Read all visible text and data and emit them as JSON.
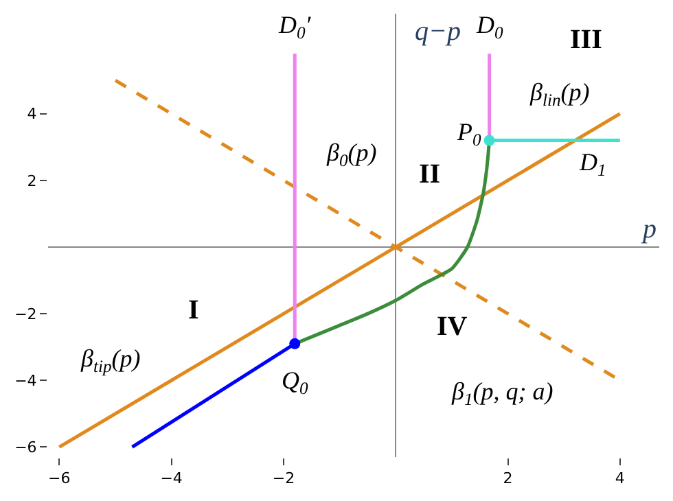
{
  "chart_data": {
    "type": "line",
    "xlabel": "p",
    "ylabel": "q−p",
    "xlim": [
      -6.2,
      4.7
    ],
    "ylim": [
      -6.3,
      7.0
    ],
    "xticks": [
      -6,
      -4,
      -2,
      2,
      4
    ],
    "yticks": [
      -6,
      -4,
      -2,
      2,
      4
    ],
    "marker": "none",
    "series": [
      {
        "color": "#e08a1e",
        "x": [
          -6,
          4
        ],
        "values": [
          -6,
          4
        ]
      },
      {
        "color": "#e08a1e",
        "line_style": "dashed",
        "x": [
          -5,
          4
        ],
        "values": [
          5,
          -4
        ]
      },
      {
        "color": "#ee82ee",
        "x": [
          -1.8,
          -1.8
        ],
        "values": [
          5.8,
          -2.9
        ]
      },
      {
        "color": "#ee82ee",
        "x": [
          1.67,
          1.67
        ],
        "values": [
          5.8,
          3.2
        ]
      },
      {
        "color": "#40e0d0",
        "x": [
          1.67,
          4
        ],
        "values": [
          3.2,
          3.2
        ]
      },
      {
        "color": "#0000ff",
        "x": [
          -4.7,
          -1.8
        ],
        "values": [
          -6,
          -2.9
        ]
      },
      {
        "color": "#3c8c3c",
        "x": [
          -1.8,
          -1.0,
          -0.5,
          0,
          0.5,
          1.0,
          1.28,
          1.45,
          1.56,
          1.62,
          1.65,
          1.67
        ],
        "values": [
          -2.9,
          -2.35,
          -2.0,
          -1.6,
          -1.1,
          -0.65,
          0,
          0.8,
          1.6,
          2.3,
          2.8,
          3.2
        ]
      },
      {
        "type": "scatter",
        "marker": "circle",
        "color": "#40e0d0",
        "x": [
          1.67
        ],
        "values": [
          3.2
        ]
      },
      {
        "type": "scatter",
        "marker": "circle",
        "color": "#0000ff",
        "x": [
          -1.8
        ],
        "values": [
          -2.9
        ]
      }
    ],
    "annotations": [
      "D$_{0}$′",
      "D$_{0}$",
      "III",
      "β$_{lin}$(p)",
      "P$_{0}$",
      "D$_{1}$",
      "β$_{0}$(p)",
      "II",
      "I",
      "β$_{tip}$(p)",
      "Q$_{0}$",
      "IV",
      "β$_{1}$(p, q; a)"
    ]
  }
}
